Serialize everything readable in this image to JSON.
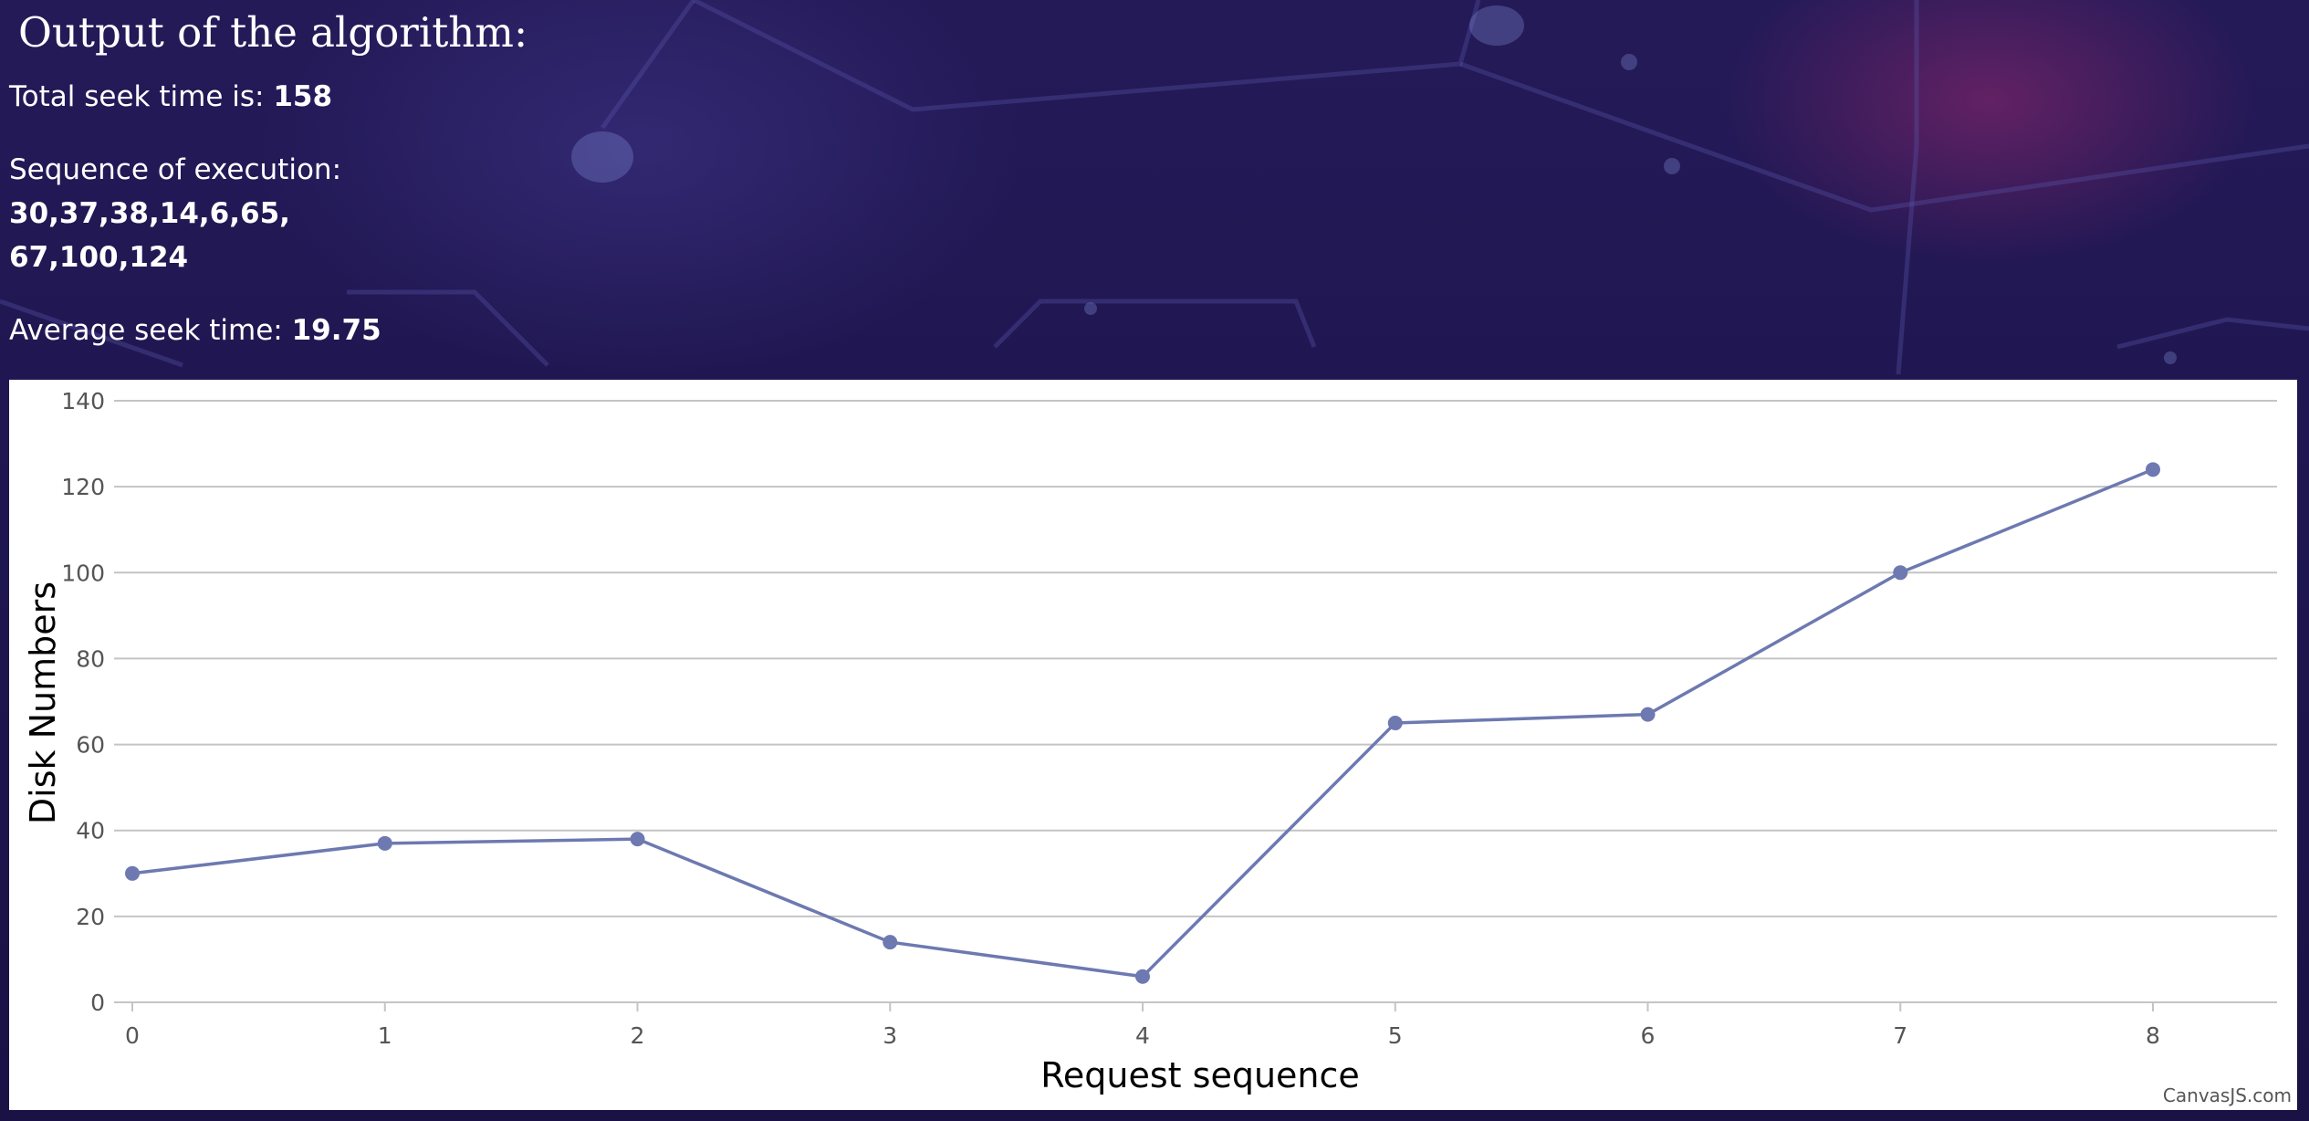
{
  "output": {
    "heading": "Output of the algorithm:",
    "total_label": "Total seek time is:",
    "total_value": "158",
    "sequence_label": "Sequence of execution:",
    "sequence_line1": "30,37,38,14,6,65,",
    "sequence_line2": "67,100,124",
    "average_label": "Average seek time:",
    "average_value": "19.75"
  },
  "credit": "CanvasJS.com",
  "colors": {
    "series": "#6d79b0",
    "grid": "#c4c4c4",
    "axis_text": "#555555"
  },
  "chart_data": {
    "type": "line",
    "x": [
      0,
      1,
      2,
      3,
      4,
      5,
      6,
      7,
      8
    ],
    "series": [
      {
        "values": [
          30,
          37,
          38,
          14,
          6,
          65,
          67,
          100,
          124
        ]
      }
    ],
    "xlabel": "Request sequence",
    "ylabel": "Disk Numbers",
    "ylim": [
      0,
      140
    ],
    "yticks": [
      0,
      20,
      40,
      60,
      80,
      100,
      120,
      140
    ],
    "xticks": [
      0,
      1,
      2,
      3,
      4,
      5,
      6,
      7,
      8
    ],
    "grid": true,
    "markers": true
  }
}
